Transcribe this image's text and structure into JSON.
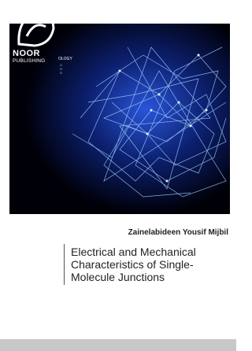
{
  "logo": {
    "name": "NOOR",
    "subtitle": "PUBLISHING",
    "fragment_1": "OLOGY",
    "fragment_2": "U N D"
  },
  "author": "Zainelabideen Yousif Mijbil",
  "title": [
    "Electrical and Mechanical",
    "Characteristics of Single-",
    "Molecule Junctions"
  ]
}
